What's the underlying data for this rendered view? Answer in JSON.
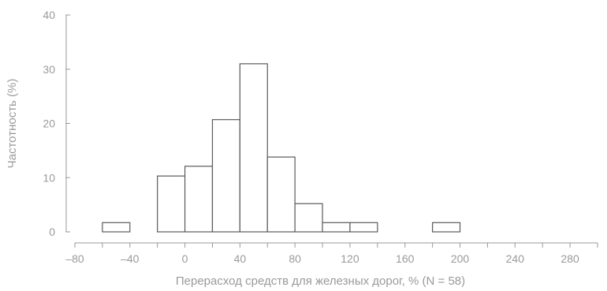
{
  "chart_data": {
    "type": "bar",
    "title": "",
    "xlabel": "Перерасход средств для железных дорог, % (N = 58)",
    "ylabel": "Частотность (%)",
    "xlim": [
      -80,
      300
    ],
    "ylim": [
      0,
      40
    ],
    "bin_width": 20,
    "x_ticks": [
      -80,
      -40,
      0,
      40,
      80,
      120,
      160,
      200,
      240,
      280
    ],
    "x_tick_labels": [
      "–80",
      "–40",
      "0",
      "40",
      "80",
      "120",
      "160",
      "200",
      "240",
      "280"
    ],
    "y_ticks": [
      0,
      10,
      20,
      30,
      40
    ],
    "y_tick_labels": [
      "0",
      "10",
      "20",
      "30",
      "40"
    ],
    "grid": false,
    "bins": [
      {
        "start": -60,
        "end": -40,
        "value": 1.7
      },
      {
        "start": -20,
        "end": 0,
        "value": 10.3
      },
      {
        "start": 0,
        "end": 20,
        "value": 12.1
      },
      {
        "start": 20,
        "end": 40,
        "value": 20.7
      },
      {
        "start": 40,
        "end": 60,
        "value": 31.0
      },
      {
        "start": 60,
        "end": 80,
        "value": 13.8
      },
      {
        "start": 80,
        "end": 100,
        "value": 5.2
      },
      {
        "start": 100,
        "end": 120,
        "value": 1.7
      },
      {
        "start": 120,
        "end": 140,
        "value": 1.7
      },
      {
        "start": 180,
        "end": 200,
        "value": 1.7
      }
    ]
  },
  "colors": {
    "axis": "#9a9a9a",
    "bar_stroke": "#5a5a5a",
    "bar_fill": "#ffffff",
    "text": "#9a9a9a"
  }
}
